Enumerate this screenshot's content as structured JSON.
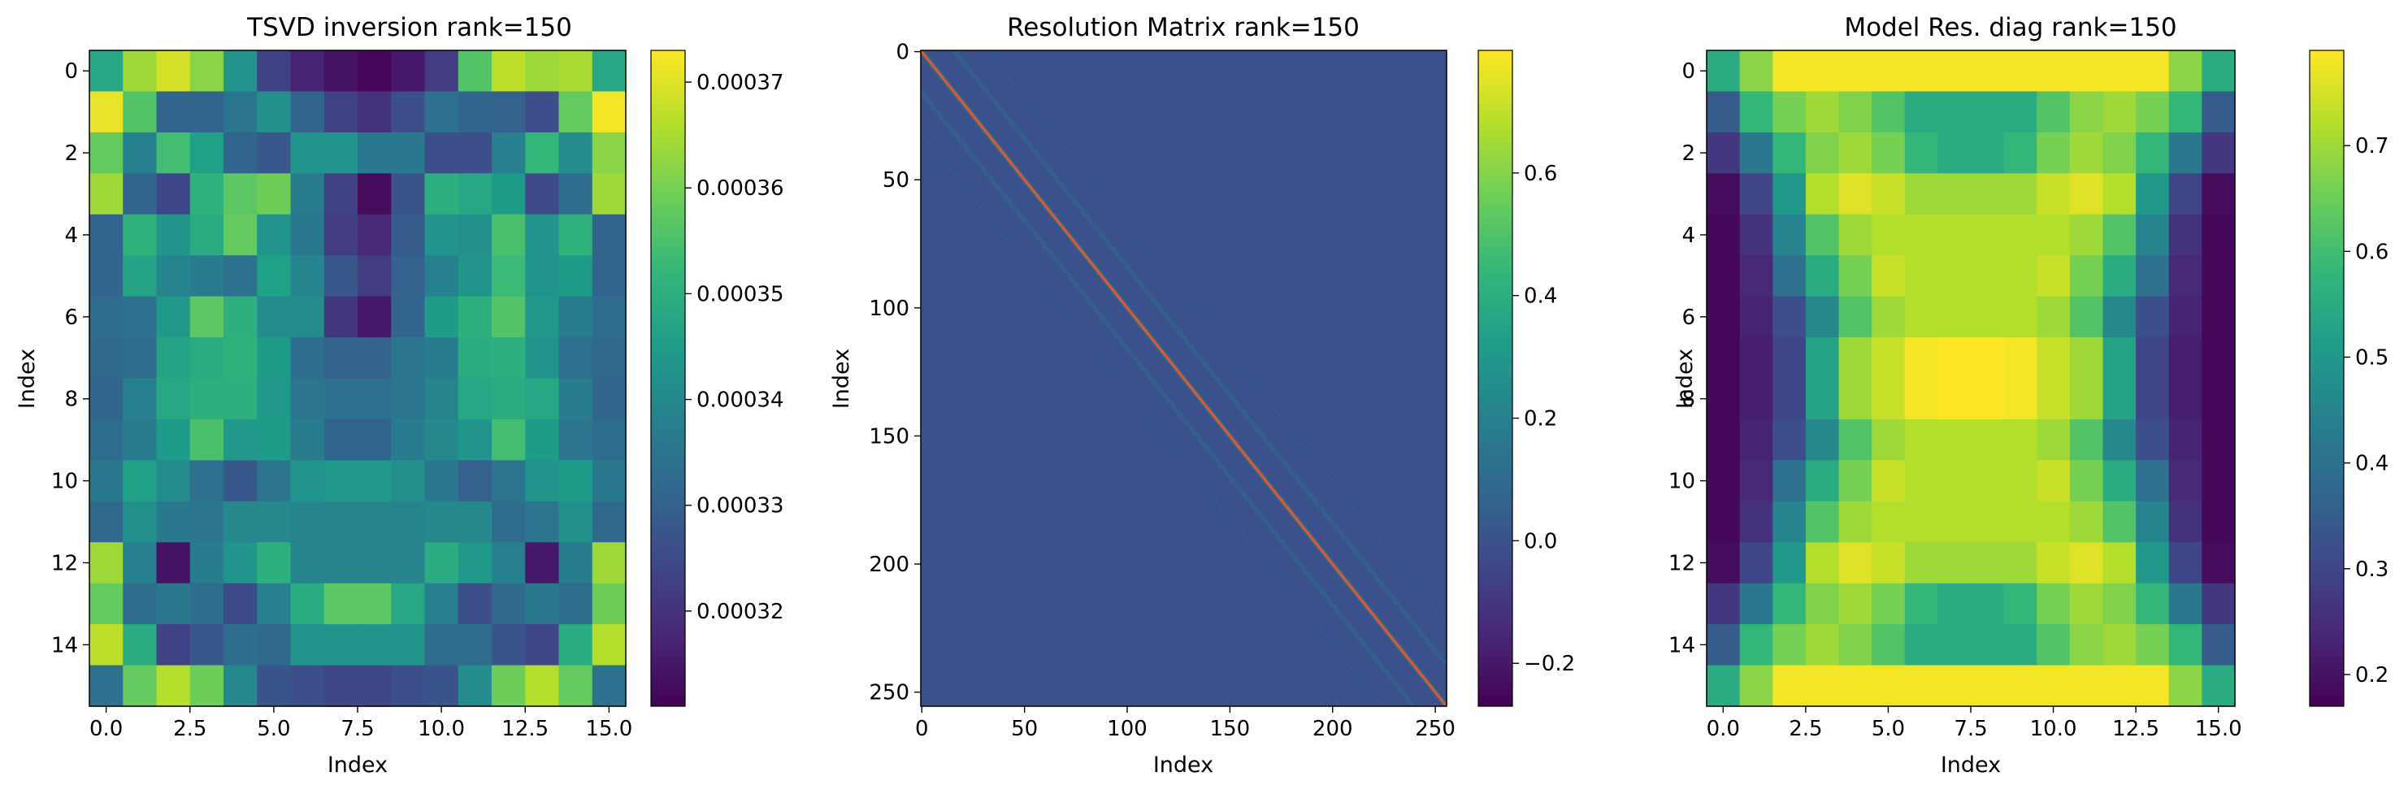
{
  "chart_data": [
    {
      "type": "heatmap",
      "title": "TSVD inversion rank=150",
      "xlabel": "Index",
      "ylabel": "Index",
      "colormap": "viridis",
      "clim": [
        0.000311,
        0.000373
      ],
      "xlim": [
        -0.5,
        15.5
      ],
      "ylim": [
        15.5,
        -0.5
      ],
      "xticks": [
        "0.0",
        "2.5",
        "5.0",
        "7.5",
        "10.0",
        "12.5",
        "15.0"
      ],
      "yticks": [
        "0",
        "2",
        "4",
        "6",
        "8",
        "10",
        "12",
        "14"
      ],
      "colorbar_ticks": [
        "0.00032",
        "0.00033",
        "0.00034",
        "0.00035",
        "0.00036",
        "0.00037"
      ],
      "colorbar_tick_values": [
        0.00032,
        0.00033,
        0.00034,
        0.00035,
        0.00036,
        0.00037
      ],
      "values": [
        [
          0.000348,
          0.000364,
          0.000369,
          0.000362,
          0.000343,
          0.000323,
          0.000317,
          0.000314,
          0.000312,
          0.000315,
          0.000322,
          0.000356,
          0.000367,
          0.000364,
          0.000365,
          0.000348
        ],
        [
          0.000371,
          0.000356,
          0.000331,
          0.000331,
          0.000335,
          0.000342,
          0.000331,
          0.000323,
          0.00032,
          0.000326,
          0.000334,
          0.000331,
          0.00033,
          0.000326,
          0.000358,
          0.000372
        ],
        [
          0.000358,
          0.000338,
          0.000354,
          0.000346,
          0.000331,
          0.000328,
          0.000343,
          0.000343,
          0.000336,
          0.000336,
          0.000326,
          0.000326,
          0.000338,
          0.000352,
          0.000341,
          0.000362
        ],
        [
          0.000364,
          0.000331,
          0.000324,
          0.000351,
          0.000357,
          0.000359,
          0.000337,
          0.000323,
          0.000313,
          0.000327,
          0.00035,
          0.000348,
          0.000345,
          0.000325,
          0.000333,
          0.000364
        ],
        [
          0.000331,
          0.000351,
          0.000343,
          0.000349,
          0.000358,
          0.000343,
          0.000336,
          0.000322,
          0.000318,
          0.000329,
          0.000343,
          0.000342,
          0.000355,
          0.000343,
          0.000351,
          0.000331
        ],
        [
          0.000331,
          0.000347,
          0.000339,
          0.000337,
          0.000334,
          0.000346,
          0.000339,
          0.000328,
          0.000322,
          0.00033,
          0.000338,
          0.000343,
          0.000353,
          0.000343,
          0.000345,
          0.000331
        ],
        [
          0.000333,
          0.000334,
          0.000344,
          0.000357,
          0.00035,
          0.000341,
          0.000341,
          0.000321,
          0.000315,
          0.000331,
          0.000345,
          0.00035,
          0.000356,
          0.000344,
          0.000337,
          0.000333
        ],
        [
          0.000332,
          0.000333,
          0.000347,
          0.000349,
          0.000351,
          0.000345,
          0.000333,
          0.00033,
          0.00033,
          0.000335,
          0.000337,
          0.000349,
          0.00035,
          0.000343,
          0.000334,
          0.000332
        ],
        [
          0.000331,
          0.000338,
          0.000348,
          0.00035,
          0.00035,
          0.000344,
          0.000335,
          0.000334,
          0.000334,
          0.000335,
          0.000339,
          0.000348,
          0.000349,
          0.000348,
          0.000337,
          0.000331
        ],
        [
          0.000333,
          0.000337,
          0.000345,
          0.000355,
          0.000344,
          0.000345,
          0.000337,
          0.000331,
          0.000331,
          0.000337,
          0.00034,
          0.000343,
          0.000354,
          0.000345,
          0.000335,
          0.000333
        ],
        [
          0.000336,
          0.000346,
          0.000341,
          0.000334,
          0.000328,
          0.000335,
          0.000343,
          0.000344,
          0.000344,
          0.000342,
          0.000336,
          0.00033,
          0.000335,
          0.000343,
          0.000345,
          0.000336
        ],
        [
          0.000332,
          0.000342,
          0.000336,
          0.000335,
          0.00034,
          0.00034,
          0.000339,
          0.000339,
          0.000339,
          0.000339,
          0.00034,
          0.00034,
          0.000333,
          0.000335,
          0.000342,
          0.000332
        ],
        [
          0.000364,
          0.000338,
          0.000314,
          0.000337,
          0.000343,
          0.00035,
          0.000339,
          0.000339,
          0.000339,
          0.000339,
          0.000349,
          0.000344,
          0.000338,
          0.000315,
          0.000337,
          0.000364
        ],
        [
          0.000358,
          0.000333,
          0.000336,
          0.000333,
          0.000325,
          0.000338,
          0.000349,
          0.000357,
          0.000357,
          0.000348,
          0.000338,
          0.000326,
          0.000332,
          0.000336,
          0.000333,
          0.000359
        ],
        [
          0.000367,
          0.000349,
          0.000323,
          0.000328,
          0.000333,
          0.000332,
          0.000343,
          0.000343,
          0.000343,
          0.000343,
          0.000333,
          0.000333,
          0.000327,
          0.000324,
          0.000349,
          0.000366
        ],
        [
          0.000334,
          0.000358,
          0.000366,
          0.000359,
          0.00034,
          0.000327,
          0.000326,
          0.000324,
          0.000324,
          0.000326,
          0.000327,
          0.000341,
          0.000359,
          0.000366,
          0.000358,
          0.000334
        ]
      ]
    },
    {
      "type": "heatmap",
      "title": "Resolution Matrix rank=150",
      "xlabel": "Index",
      "ylabel": "Index",
      "colormap": "viridis",
      "clim": [
        -0.27,
        0.8
      ],
      "shape": [
        256,
        256
      ],
      "xlim": [
        -0.5,
        255.5
      ],
      "ylim": [
        255.5,
        -0.5
      ],
      "xticks": [
        "0",
        "50",
        "100",
        "150",
        "200",
        "250"
      ],
      "yticks": [
        "0",
        "50",
        "100",
        "150",
        "200",
        "250"
      ],
      "colorbar_ticks": [
        "−0.2",
        "0.0",
        "0.2",
        "0.4",
        "0.6"
      ],
      "colorbar_tick_values": [
        -0.2,
        0.0,
        0.2,
        0.4,
        0.6
      ],
      "background_value": 0.0,
      "diagonal_value": 0.8,
      "off_diagonal_bands": [
        {
          "offset": 1,
          "value": 0.2
        },
        {
          "offset": -1,
          "value": 0.2
        },
        {
          "offset": 16,
          "value": 0.12
        },
        {
          "offset": -16,
          "value": 0.12
        },
        {
          "offset": 17,
          "value": 0.06
        },
        {
          "offset": -17,
          "value": 0.06
        },
        {
          "offset": 15,
          "value": 0.06
        },
        {
          "offset": -15,
          "value": 0.06
        },
        {
          "offset": 32,
          "value": 0.05
        },
        {
          "offset": -32,
          "value": 0.05
        }
      ]
    },
    {
      "type": "heatmap",
      "title": "Model Res. diag rank=150",
      "xlabel": "Index",
      "ylabel": "Index",
      "colormap": "viridis",
      "clim": [
        0.17,
        0.79
      ],
      "xlim": [
        -0.5,
        15.5
      ],
      "ylim": [
        15.5,
        -0.5
      ],
      "xticks": [
        "0.0",
        "2.5",
        "5.0",
        "7.5",
        "10.0",
        "12.5",
        "15.0"
      ],
      "yticks": [
        "0",
        "2",
        "4",
        "6",
        "8",
        "10",
        "12",
        "14"
      ],
      "colorbar_ticks": [
        "0.2",
        "0.3",
        "0.4",
        "0.5",
        "0.6",
        "0.7"
      ],
      "colorbar_tick_values": [
        0.2,
        0.3,
        0.4,
        0.5,
        0.6,
        0.7
      ],
      "values": [
        [
          0.55,
          0.68,
          0.78,
          0.78,
          0.78,
          0.78,
          0.78,
          0.78,
          0.78,
          0.78,
          0.78,
          0.78,
          0.78,
          0.78,
          0.68,
          0.55
        ],
        [
          0.35,
          0.58,
          0.66,
          0.7,
          0.67,
          0.62,
          0.55,
          0.55,
          0.55,
          0.55,
          0.62,
          0.68,
          0.7,
          0.66,
          0.58,
          0.35
        ],
        [
          0.27,
          0.42,
          0.58,
          0.67,
          0.7,
          0.66,
          0.58,
          0.55,
          0.55,
          0.58,
          0.66,
          0.7,
          0.67,
          0.58,
          0.42,
          0.27
        ],
        [
          0.19,
          0.3,
          0.5,
          0.72,
          0.76,
          0.74,
          0.7,
          0.7,
          0.7,
          0.7,
          0.74,
          0.76,
          0.72,
          0.5,
          0.3,
          0.19
        ],
        [
          0.18,
          0.26,
          0.45,
          0.62,
          0.7,
          0.72,
          0.72,
          0.72,
          0.72,
          0.72,
          0.72,
          0.7,
          0.62,
          0.45,
          0.26,
          0.18
        ],
        [
          0.18,
          0.24,
          0.4,
          0.55,
          0.66,
          0.74,
          0.72,
          0.72,
          0.72,
          0.72,
          0.74,
          0.66,
          0.55,
          0.4,
          0.24,
          0.18
        ],
        [
          0.18,
          0.23,
          0.32,
          0.46,
          0.62,
          0.7,
          0.72,
          0.72,
          0.72,
          0.72,
          0.7,
          0.62,
          0.46,
          0.32,
          0.23,
          0.18
        ],
        [
          0.18,
          0.22,
          0.3,
          0.53,
          0.7,
          0.74,
          0.78,
          0.79,
          0.79,
          0.78,
          0.74,
          0.7,
          0.53,
          0.3,
          0.22,
          0.18
        ],
        [
          0.18,
          0.22,
          0.3,
          0.53,
          0.7,
          0.74,
          0.78,
          0.79,
          0.79,
          0.78,
          0.74,
          0.7,
          0.53,
          0.3,
          0.22,
          0.18
        ],
        [
          0.18,
          0.23,
          0.32,
          0.46,
          0.62,
          0.7,
          0.72,
          0.72,
          0.72,
          0.72,
          0.7,
          0.62,
          0.46,
          0.32,
          0.23,
          0.18
        ],
        [
          0.18,
          0.24,
          0.4,
          0.55,
          0.66,
          0.74,
          0.72,
          0.72,
          0.72,
          0.72,
          0.74,
          0.66,
          0.55,
          0.4,
          0.24,
          0.18
        ],
        [
          0.18,
          0.26,
          0.45,
          0.62,
          0.7,
          0.72,
          0.72,
          0.72,
          0.72,
          0.72,
          0.72,
          0.7,
          0.62,
          0.45,
          0.26,
          0.18
        ],
        [
          0.19,
          0.3,
          0.5,
          0.72,
          0.76,
          0.74,
          0.7,
          0.7,
          0.7,
          0.7,
          0.74,
          0.76,
          0.72,
          0.5,
          0.3,
          0.19
        ],
        [
          0.27,
          0.42,
          0.58,
          0.67,
          0.7,
          0.66,
          0.58,
          0.55,
          0.55,
          0.58,
          0.66,
          0.7,
          0.67,
          0.58,
          0.42,
          0.27
        ],
        [
          0.35,
          0.58,
          0.66,
          0.7,
          0.67,
          0.62,
          0.55,
          0.55,
          0.55,
          0.55,
          0.62,
          0.68,
          0.7,
          0.66,
          0.58,
          0.35
        ],
        [
          0.55,
          0.68,
          0.78,
          0.78,
          0.78,
          0.78,
          0.78,
          0.78,
          0.78,
          0.78,
          0.78,
          0.78,
          0.78,
          0.78,
          0.68,
          0.55
        ]
      ]
    }
  ],
  "colors": {
    "viridis": [
      "#440154",
      "#482878",
      "#3e4a89",
      "#31688e",
      "#26828e",
      "#1f9e89",
      "#35b779",
      "#6ece58",
      "#b5de2b",
      "#fde725"
    ],
    "diagonal_highlight": "#e8562a"
  }
}
